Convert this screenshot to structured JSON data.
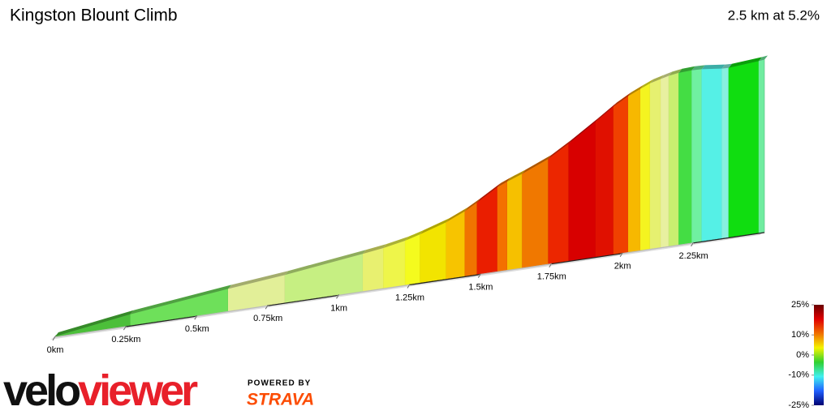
{
  "chart_data": {
    "type": "climb-profile",
    "title": "Kingston Blount Climb",
    "subtitle": "2.5 km at 5.2%",
    "x": [
      0,
      0.265,
      0.61,
      0.81,
      1.085,
      1.157,
      1.234,
      1.286,
      1.378,
      1.444,
      1.487,
      1.559,
      1.594,
      1.646,
      1.738,
      1.81,
      1.905,
      1.968,
      2.02,
      2.063,
      2.097,
      2.135,
      2.163,
      2.198,
      2.244,
      2.279,
      2.35,
      2.374,
      2.48,
      2.5
    ],
    "values": [
      0,
      8,
      16,
      20,
      27,
      29,
      32,
      35,
      41,
      47,
      52,
      61,
      64,
      68,
      76,
      85,
      98,
      107,
      113,
      117,
      120,
      122,
      123.5,
      124.5,
      125,
      124.7,
      123,
      122.8,
      124.5,
      125
    ],
    "segment_colors": [
      "#4cbf3a",
      "#6ee05a",
      "#e2ef98",
      "#c6ef82",
      "#e8f070",
      "#eef54a",
      "#f4fb1e",
      "#f2e400",
      "#f7c400",
      "#f07400",
      "#ea1e00",
      "#f47000",
      "#f6c000",
      "#f07800",
      "#ec2600",
      "#d80000",
      "#e01000",
      "#f04000",
      "#f7b800",
      "#f4f420",
      "#e6f070",
      "#e8f0a0",
      "#c8ef70",
      "#44dd44",
      "#70f0a0",
      "#55f0e6",
      "#88f0e0",
      "#10dd10",
      "#70eca0"
    ],
    "xlim": [
      0,
      2.5
    ],
    "xticks": [
      {
        "value": 0,
        "label": "0km"
      },
      {
        "value": 0.25,
        "label": "0.25km"
      },
      {
        "value": 0.5,
        "label": "0.5km"
      },
      {
        "value": 0.75,
        "label": "0.75km"
      },
      {
        "value": 1,
        "label": "1km"
      },
      {
        "value": 1.25,
        "label": "1.25km"
      },
      {
        "value": 1.5,
        "label": "1.5km"
      },
      {
        "value": 1.75,
        "label": "1.75km"
      },
      {
        "value": 2,
        "label": "2km"
      },
      {
        "value": 2.25,
        "label": "2.25km"
      }
    ],
    "colorbar": {
      "lim": [
        -25,
        25
      ],
      "ticks": [
        {
          "value": 25,
          "label": "25%"
        },
        {
          "value": 10,
          "label": "10%"
        },
        {
          "value": 0,
          "label": "0%"
        },
        {
          "value": -10,
          "label": "-10%"
        },
        {
          "value": -25,
          "label": "-25%"
        }
      ],
      "colors": [
        "#6a0000",
        "#e00000",
        "#f07000",
        "#f4f400",
        "#30d030",
        "#40f0f0",
        "#2060ff",
        "#000070"
      ]
    }
  },
  "branding": {
    "logo_left": "velo",
    "logo_right": "viewer",
    "powered_by": "POWERED BY",
    "partner": "STRAVA"
  }
}
